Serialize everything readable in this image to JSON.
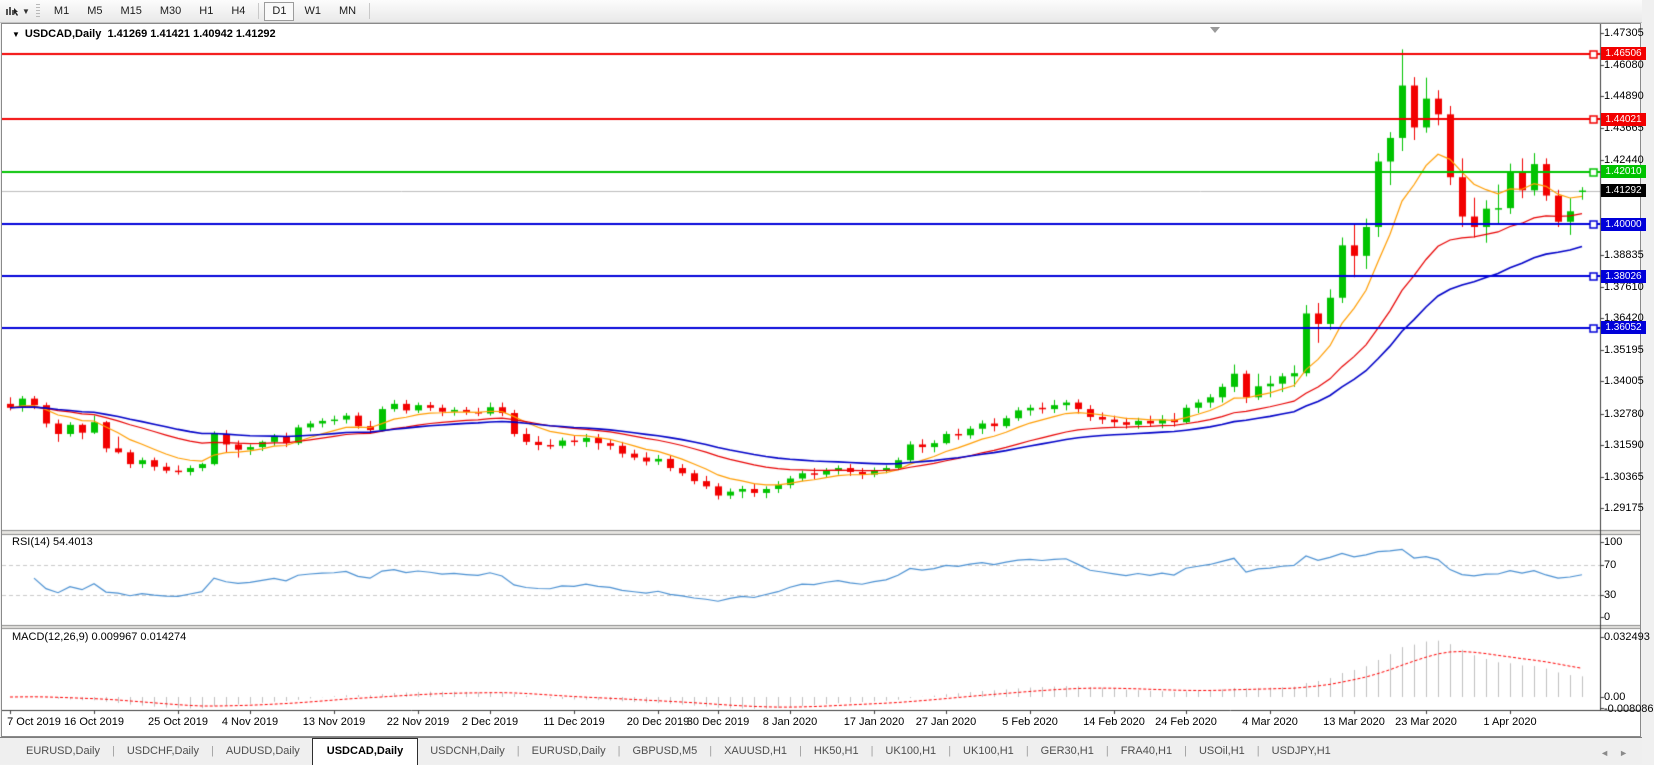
{
  "toolbar": {
    "timeframes": [
      "M1",
      "M5",
      "M15",
      "M30",
      "H1",
      "H4",
      "D1",
      "W1",
      "MN"
    ],
    "active_timeframe": "D1"
  },
  "chart": {
    "symbol_title": "USDCAD,Daily",
    "ohlc_text": "1.41269 1.41421 1.40942 1.41292"
  },
  "indicators": {
    "rsi_label": "RSI(14) 54.4013",
    "macd_label": "MACD(12,26,9) 0.009967 0.014274"
  },
  "colors": {
    "candle_up": "#00c300",
    "candle_down": "#f20000",
    "level_red": "#f20000",
    "level_green": "#00c300",
    "level_blue": "#0000d9",
    "current_line": "#bdbdbd",
    "current_badge": "#000000",
    "ma_fast": "#ff9d00",
    "ma_mid": "#e80000",
    "ma_slow": "#0000c8",
    "rsi_line": "#4a90d2",
    "rsi_levels": "#c9c9c9",
    "macd_hist": "#bfbfbf",
    "macd_signal": "#ff0000"
  },
  "chart_data": {
    "type": "candlestick",
    "symbol": "USDCAD",
    "timeframe": "Daily",
    "ohlc_display": {
      "open": "1.41269",
      "high": "1.41421",
      "low": "1.40942",
      "close": "1.41292"
    },
    "price_axis": {
      "ticks": [
        {
          "value": 1.47305,
          "label": "1.47305"
        },
        {
          "value": 1.4608,
          "label": "1.46080"
        },
        {
          "value": 1.4489,
          "label": "1.44890"
        },
        {
          "value": 1.43665,
          "label": "1.43665"
        },
        {
          "value": 1.4244,
          "label": "1.42440"
        },
        {
          "value": 1.38835,
          "label": "1.38835"
        },
        {
          "value": 1.3761,
          "label": "1.37610"
        },
        {
          "value": 1.3642,
          "label": "1.36420"
        },
        {
          "value": 1.35195,
          "label": "1.35195"
        },
        {
          "value": 1.34005,
          "label": "1.34005"
        },
        {
          "value": 1.3278,
          "label": "1.32780"
        },
        {
          "value": 1.3159,
          "label": "1.31590"
        },
        {
          "value": 1.30365,
          "label": "1.30365"
        },
        {
          "value": 1.29175,
          "label": "1.29175"
        }
      ]
    },
    "levels": [
      {
        "price": 1.46506,
        "label": "1.46506",
        "color_key": "level_red"
      },
      {
        "price": 1.44021,
        "label": "1.44021",
        "color_key": "level_red"
      },
      {
        "price": 1.4201,
        "label": "1.42010",
        "color_key": "level_green"
      },
      {
        "price": 1.4,
        "label": "1.40000",
        "color_key": "level_blue"
      },
      {
        "price": 1.38026,
        "label": "1.38026",
        "color_key": "level_blue"
      },
      {
        "price": 1.36052,
        "label": "1.36052",
        "color_key": "level_blue"
      }
    ],
    "current_price": {
      "value": 1.41292,
      "label": "1.41292"
    },
    "x_ticks": [
      {
        "index": 0,
        "label": "7 Oct 2019"
      },
      {
        "index": 7,
        "label": "16 Oct 2019"
      },
      {
        "index": 14,
        "label": "25 Oct 2019"
      },
      {
        "index": 20,
        "label": "4 Nov 2019"
      },
      {
        "index": 27,
        "label": "13 Nov 2019"
      },
      {
        "index": 34,
        "label": "22 Nov 2019"
      },
      {
        "index": 40,
        "label": "2 Dec 2019"
      },
      {
        "index": 47,
        "label": "11 Dec 2019"
      },
      {
        "index": 54,
        "label": "20 Dec 2019"
      },
      {
        "index": 59,
        "label": "30 Dec 2019"
      },
      {
        "index": 65,
        "label": "8 Jan 2020"
      },
      {
        "index": 72,
        "label": "17 Jan 2020"
      },
      {
        "index": 78,
        "label": "27 Jan 2020"
      },
      {
        "index": 85,
        "label": "5 Feb 2020"
      },
      {
        "index": 92,
        "label": "14 Feb 2020"
      },
      {
        "index": 98,
        "label": "24 Feb 2020"
      },
      {
        "index": 105,
        "label": "4 Mar 2020"
      },
      {
        "index": 112,
        "label": "13 Mar 2020"
      },
      {
        "index": 118,
        "label": "23 Mar 2020"
      },
      {
        "index": 125,
        "label": "1 Apr 2020"
      }
    ],
    "moving_averages": [
      {
        "period": 8,
        "color_key": "ma_fast",
        "width": 1.2
      },
      {
        "period": 21,
        "color_key": "ma_mid",
        "width": 1.2
      },
      {
        "period": 34,
        "color_key": "ma_slow",
        "width": 1.6
      }
    ],
    "rsi": {
      "period": 14,
      "value": "54.4013",
      "levels": [
        70,
        30
      ],
      "ticks": [
        {
          "value": 100,
          "label": "100"
        },
        {
          "value": 70,
          "label": "70"
        },
        {
          "value": 30,
          "label": "30"
        },
        {
          "value": 0,
          "label": "0"
        }
      ]
    },
    "macd": {
      "fast": 12,
      "slow": 26,
      "signal": 9,
      "values": "0.009967 0.014274",
      "ticks": [
        {
          "value": 0.032493,
          "label": "0.032493"
        },
        {
          "value": 0,
          "label": "0.00"
        },
        {
          "value": -0.008086,
          "label": "-0.008086"
        }
      ]
    },
    "candles": [
      [
        1.3315,
        1.334,
        1.329,
        1.33
      ],
      [
        1.33,
        1.3345,
        1.3285,
        1.3335
      ],
      [
        1.3335,
        1.3345,
        1.3295,
        1.331
      ],
      [
        1.331,
        1.332,
        1.3225,
        1.324
      ],
      [
        1.324,
        1.3255,
        1.317,
        1.32
      ],
      [
        1.32,
        1.3245,
        1.319,
        1.3235
      ],
      [
        1.3235,
        1.324,
        1.318,
        1.3205
      ],
      [
        1.3205,
        1.327,
        1.32,
        1.3245
      ],
      [
        1.3245,
        1.325,
        1.313,
        1.3145
      ],
      [
        1.3145,
        1.319,
        1.3125,
        1.313
      ],
      [
        1.313,
        1.314,
        1.307,
        1.3085
      ],
      [
        1.3085,
        1.311,
        1.307,
        1.31
      ],
      [
        1.31,
        1.311,
        1.306,
        1.3075
      ],
      [
        1.3075,
        1.309,
        1.305,
        1.306
      ],
      [
        1.306,
        1.308,
        1.3045,
        1.3055
      ],
      [
        1.3055,
        1.308,
        1.3042,
        1.307
      ],
      [
        1.307,
        1.309,
        1.3058,
        1.3085
      ],
      [
        1.3085,
        1.321,
        1.308,
        1.32
      ],
      [
        1.32,
        1.3215,
        1.313,
        1.316
      ],
      [
        1.316,
        1.3175,
        1.311,
        1.314
      ],
      [
        1.314,
        1.316,
        1.312,
        1.315
      ],
      [
        1.315,
        1.3175,
        1.3135,
        1.317
      ],
      [
        1.317,
        1.32,
        1.3155,
        1.319
      ],
      [
        1.319,
        1.3205,
        1.315,
        1.3165
      ],
      [
        1.3165,
        1.3235,
        1.3158,
        1.3225
      ],
      [
        1.3225,
        1.325,
        1.321,
        1.324
      ],
      [
        1.324,
        1.326,
        1.3225,
        1.325
      ],
      [
        1.325,
        1.327,
        1.3235,
        1.3255
      ],
      [
        1.3255,
        1.328,
        1.324,
        1.327
      ],
      [
        1.327,
        1.3282,
        1.322,
        1.323
      ],
      [
        1.323,
        1.325,
        1.32,
        1.3215
      ],
      [
        1.3215,
        1.3305,
        1.321,
        1.3295
      ],
      [
        1.3295,
        1.333,
        1.3285,
        1.3315
      ],
      [
        1.3315,
        1.333,
        1.3278,
        1.329
      ],
      [
        1.329,
        1.332,
        1.328,
        1.331
      ],
      [
        1.331,
        1.3322,
        1.3288,
        1.33
      ],
      [
        1.33,
        1.3312,
        1.3268,
        1.3285
      ],
      [
        1.3285,
        1.3302,
        1.327,
        1.3292
      ],
      [
        1.3292,
        1.3303,
        1.3273,
        1.3284
      ],
      [
        1.3284,
        1.33,
        1.3268,
        1.3278
      ],
      [
        1.3278,
        1.332,
        1.327,
        1.3302
      ],
      [
        1.3302,
        1.332,
        1.3268,
        1.328
      ],
      [
        1.328,
        1.3292,
        1.319,
        1.32
      ],
      [
        1.32,
        1.3222,
        1.3158,
        1.317
      ],
      [
        1.317,
        1.3192,
        1.3138,
        1.3158
      ],
      [
        1.3158,
        1.318,
        1.3142,
        1.3155
      ],
      [
        1.3155,
        1.3186,
        1.3145,
        1.3175
      ],
      [
        1.3175,
        1.3192,
        1.3155,
        1.317
      ],
      [
        1.317,
        1.32,
        1.315,
        1.3185
      ],
      [
        1.3185,
        1.32,
        1.314,
        1.3165
      ],
      [
        1.3165,
        1.318,
        1.314,
        1.3155
      ],
      [
        1.3155,
        1.317,
        1.311,
        1.3125
      ],
      [
        1.3125,
        1.314,
        1.31,
        1.311
      ],
      [
        1.311,
        1.313,
        1.308,
        1.3095
      ],
      [
        1.3095,
        1.312,
        1.3082,
        1.3105
      ],
      [
        1.3105,
        1.3118,
        1.3058,
        1.307
      ],
      [
        1.307,
        1.3085,
        1.304,
        1.305
      ],
      [
        1.305,
        1.3062,
        1.3008,
        1.302
      ],
      [
        1.302,
        1.304,
        1.299,
        1.3
      ],
      [
        1.3,
        1.3012,
        1.295,
        1.2965
      ],
      [
        1.2965,
        1.2992,
        1.2952,
        1.298
      ],
      [
        1.298,
        1.3002,
        1.2955,
        1.299
      ],
      [
        1.299,
        1.301,
        1.296,
        1.2975
      ],
      [
        1.2975,
        1.3,
        1.2955,
        1.299
      ],
      [
        1.299,
        1.302,
        1.2975,
        1.3005
      ],
      [
        1.3005,
        1.304,
        1.2992,
        1.303
      ],
      [
        1.303,
        1.306,
        1.302,
        1.305
      ],
      [
        1.305,
        1.307,
        1.3028,
        1.3045
      ],
      [
        1.3045,
        1.307,
        1.3035,
        1.306
      ],
      [
        1.306,
        1.308,
        1.3045,
        1.307
      ],
      [
        1.307,
        1.3085,
        1.304,
        1.3055
      ],
      [
        1.3055,
        1.307,
        1.3028,
        1.3045
      ],
      [
        1.3045,
        1.3072,
        1.3035,
        1.306
      ],
      [
        1.306,
        1.308,
        1.305,
        1.307
      ],
      [
        1.307,
        1.311,
        1.3062,
        1.31
      ],
      [
        1.31,
        1.3172,
        1.3092,
        1.316
      ],
      [
        1.316,
        1.318,
        1.3128,
        1.315
      ],
      [
        1.315,
        1.3176,
        1.313,
        1.3165
      ],
      [
        1.3165,
        1.321,
        1.316,
        1.32
      ],
      [
        1.32,
        1.322,
        1.3178,
        1.3195
      ],
      [
        1.3195,
        1.323,
        1.3182,
        1.322
      ],
      [
        1.322,
        1.3252,
        1.32,
        1.324
      ],
      [
        1.324,
        1.326,
        1.321,
        1.323
      ],
      [
        1.323,
        1.327,
        1.3222,
        1.326
      ],
      [
        1.326,
        1.3302,
        1.325,
        1.329
      ],
      [
        1.329,
        1.3312,
        1.327,
        1.33
      ],
      [
        1.33,
        1.332,
        1.3278,
        1.3295
      ],
      [
        1.3295,
        1.333,
        1.328,
        1.331
      ],
      [
        1.331,
        1.333,
        1.329,
        1.332
      ],
      [
        1.332,
        1.3332,
        1.3278,
        1.3295
      ],
      [
        1.3295,
        1.331,
        1.325,
        1.3265
      ],
      [
        1.3265,
        1.3282,
        1.3238,
        1.3255
      ],
      [
        1.3255,
        1.327,
        1.3228,
        1.3245
      ],
      [
        1.3245,
        1.3262,
        1.322,
        1.3235
      ],
      [
        1.3235,
        1.3262,
        1.322,
        1.325
      ],
      [
        1.325,
        1.327,
        1.3228,
        1.324
      ],
      [
        1.324,
        1.3272,
        1.3222,
        1.3255
      ],
      [
        1.3255,
        1.328,
        1.3228,
        1.3245
      ],
      [
        1.3245,
        1.3312,
        1.324,
        1.33
      ],
      [
        1.33,
        1.3332,
        1.328,
        1.332
      ],
      [
        1.332,
        1.3352,
        1.33,
        1.334
      ],
      [
        1.334,
        1.3392,
        1.332,
        1.338
      ],
      [
        1.338,
        1.3465,
        1.336,
        1.343
      ],
      [
        1.343,
        1.3442,
        1.3318,
        1.334
      ],
      [
        1.334,
        1.343,
        1.333,
        1.3382
      ],
      [
        1.3382,
        1.3422,
        1.334,
        1.3392
      ],
      [
        1.3392,
        1.3432,
        1.336,
        1.342
      ],
      [
        1.342,
        1.3462,
        1.338,
        1.3432
      ],
      [
        1.3432,
        1.3692,
        1.342,
        1.366
      ],
      [
        1.366,
        1.37,
        1.3548,
        1.362
      ],
      [
        1.362,
        1.3752,
        1.3598,
        1.372
      ],
      [
        1.372,
        1.395,
        1.37,
        1.392
      ],
      [
        1.392,
        1.3998,
        1.3798,
        1.388
      ],
      [
        1.388,
        1.4022,
        1.383,
        1.399
      ],
      [
        1.399,
        1.4272,
        1.3952,
        1.424
      ],
      [
        1.424,
        1.4352,
        1.415,
        1.433
      ],
      [
        1.433,
        1.4668,
        1.428,
        1.453
      ],
      [
        1.453,
        1.4562,
        1.4322,
        1.437
      ],
      [
        1.437,
        1.456,
        1.435,
        1.448
      ],
      [
        1.448,
        1.4512,
        1.4378,
        1.442
      ],
      [
        1.442,
        1.4452,
        1.415,
        1.418
      ],
      [
        1.418,
        1.4252,
        1.399,
        1.403
      ],
      [
        1.403,
        1.4102,
        1.395,
        1.399
      ],
      [
        1.399,
        1.4092,
        1.393,
        1.406
      ],
      [
        1.406,
        1.4152,
        1.4,
        1.4062
      ],
      [
        1.4062,
        1.4232,
        1.404,
        1.42
      ],
      [
        1.42,
        1.4252,
        1.41,
        1.413
      ],
      [
        1.413,
        1.4272,
        1.411,
        1.423
      ],
      [
        1.423,
        1.4252,
        1.409,
        1.411
      ],
      [
        1.411,
        1.4132,
        1.399,
        1.401
      ],
      [
        1.401,
        1.41,
        1.396,
        1.405
      ],
      [
        1.41269,
        1.41421,
        1.40942,
        1.41292
      ]
    ]
  },
  "tabbar": {
    "tabs": [
      "EURUSD,Daily",
      "USDCHF,Daily",
      "AUDUSD,Daily",
      "USDCAD,Daily",
      "USDCNH,Daily",
      "EURUSD,Daily",
      "GBPUSD,M5",
      "XAUUSD,H1",
      "HK50,H1",
      "UK100,H1",
      "UK100,H1",
      "GER30,H1",
      "FRA40,H1",
      "USOil,H1",
      "USDJPY,H1"
    ],
    "active_index": 3
  }
}
